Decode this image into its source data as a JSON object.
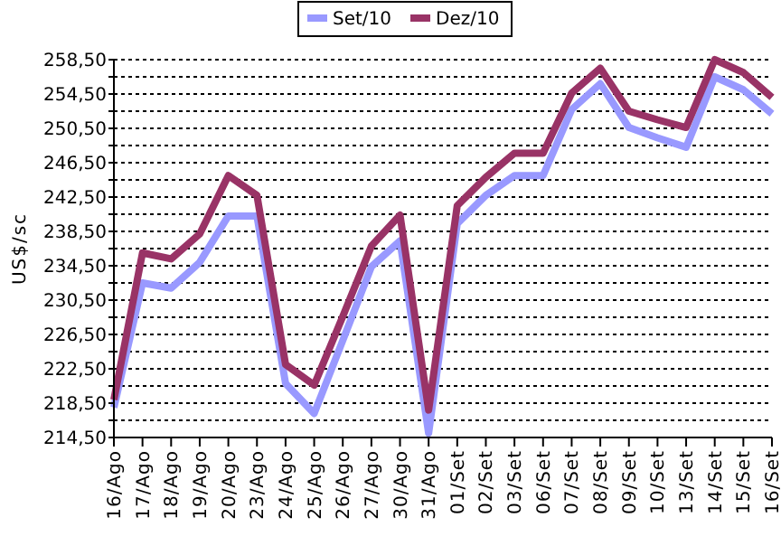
{
  "chart_data": {
    "type": "line",
    "ylabel": "US$/sc",
    "categories": [
      "16/Ago",
      "17/Ago",
      "18/Ago",
      "19/Ago",
      "20/Ago",
      "23/Ago",
      "24/Ago",
      "25/Ago",
      "26/Ago",
      "27/Ago",
      "30/Ago",
      "31/Ago",
      "01/Set",
      "02/Set",
      "03/Set",
      "06/Set",
      "07/Set",
      "08/Set",
      "09/Set",
      "10/Set",
      "13/Set",
      "14/Set",
      "15/Set",
      "16/Set"
    ],
    "series": [
      {
        "name": "Set/10",
        "color": "#9999ff",
        "values": [
          218.0,
          232.5,
          231.9,
          234.9,
          240.3,
          240.3,
          220.8,
          217.3,
          225.8,
          234.4,
          237.4,
          215.0,
          239.4,
          242.7,
          245.0,
          245.0,
          252.7,
          255.7,
          250.6,
          249.4,
          248.3,
          256.5,
          255.0,
          252.2
        ]
      },
      {
        "name": "Dez/10",
        "color": "#993366",
        "values": [
          218.9,
          236.0,
          235.3,
          238.2,
          245.0,
          242.7,
          223.0,
          220.6,
          228.6,
          236.8,
          240.4,
          217.7,
          241.5,
          244.8,
          247.6,
          247.6,
          254.6,
          257.5,
          252.5,
          251.5,
          250.6,
          258.5,
          257.0,
          254.1
        ]
      }
    ],
    "ylim": [
      214.5,
      258.5
    ],
    "yticks": [
      {
        "value": 214.5,
        "label": "214,50"
      },
      {
        "value": 216.5,
        "label": null
      },
      {
        "value": 218.5,
        "label": "218,50"
      },
      {
        "value": 220.5,
        "label": null
      },
      {
        "value": 222.5,
        "label": "222,50"
      },
      {
        "value": 224.5,
        "label": null
      },
      {
        "value": 226.5,
        "label": "226,50"
      },
      {
        "value": 228.5,
        "label": null
      },
      {
        "value": 230.5,
        "label": "230,50"
      },
      {
        "value": 232.5,
        "label": null
      },
      {
        "value": 234.5,
        "label": "234,50"
      },
      {
        "value": 236.5,
        "label": null
      },
      {
        "value": 238.5,
        "label": "238,50"
      },
      {
        "value": 240.5,
        "label": null
      },
      {
        "value": 242.5,
        "label": "242,50"
      },
      {
        "value": 244.5,
        "label": null
      },
      {
        "value": 246.5,
        "label": "246,50"
      },
      {
        "value": 248.5,
        "label": null
      },
      {
        "value": 250.5,
        "label": "250,50"
      },
      {
        "value": 252.5,
        "label": null
      },
      {
        "value": 254.5,
        "label": "254,50"
      },
      {
        "value": 256.5,
        "label": null
      },
      {
        "value": 258.5,
        "label": "258,50"
      }
    ],
    "grid": "y",
    "legend": "top",
    "marker": "none",
    "line_style": "solid"
  }
}
